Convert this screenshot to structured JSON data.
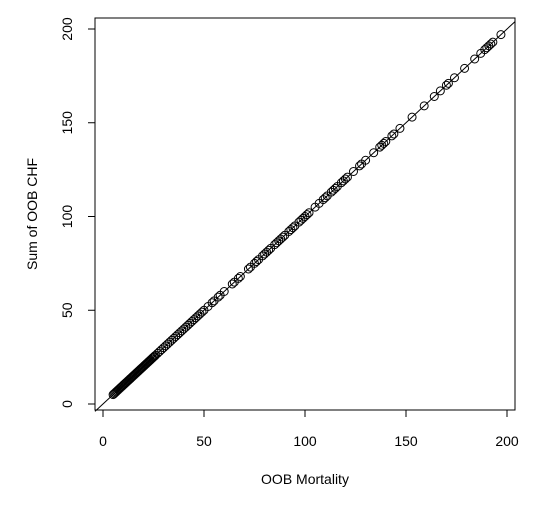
{
  "chart_data": {
    "type": "scatter",
    "title": "",
    "xlabel": "OOB Mortality",
    "ylabel": "Sum of OOB CHF",
    "xlim": [
      0,
      205
    ],
    "ylim": [
      0,
      205
    ],
    "x_ticks": [
      0,
      50,
      100,
      150,
      200
    ],
    "y_ticks": [
      0,
      50,
      100,
      150,
      200
    ],
    "x_tick_labels": [
      "0",
      "50",
      "100",
      "150",
      "200"
    ],
    "y_tick_labels": [
      "0",
      "50",
      "100",
      "150",
      "200"
    ],
    "grid": false,
    "legend": "none",
    "reference_line": {
      "slope": 1,
      "intercept": 0
    },
    "point_style": "open-circle",
    "points": [
      [
        5,
        5
      ],
      [
        5.5,
        5.5
      ],
      [
        6,
        6
      ],
      [
        6.5,
        6.5
      ],
      [
        7,
        7
      ],
      [
        7.5,
        7.5
      ],
      [
        8,
        8
      ],
      [
        8.5,
        8.5
      ],
      [
        9,
        9
      ],
      [
        9.5,
        9.5
      ],
      [
        10,
        10
      ],
      [
        10.5,
        10.5
      ],
      [
        11,
        11
      ],
      [
        11.5,
        11.5
      ],
      [
        12,
        12
      ],
      [
        12.5,
        12.5
      ],
      [
        13,
        13
      ],
      [
        13.5,
        13.5
      ],
      [
        14,
        14
      ],
      [
        14.5,
        14.5
      ],
      [
        15,
        15
      ],
      [
        15.5,
        15.5
      ],
      [
        16,
        16
      ],
      [
        16.5,
        16.5
      ],
      [
        17,
        17
      ],
      [
        17.5,
        17.5
      ],
      [
        18,
        18
      ],
      [
        18.5,
        18.5
      ],
      [
        19,
        19
      ],
      [
        19.5,
        19.5
      ],
      [
        20,
        20
      ],
      [
        20.5,
        20.5
      ],
      [
        21,
        21
      ],
      [
        21.5,
        21.5
      ],
      [
        22,
        22
      ],
      [
        22.5,
        22.5
      ],
      [
        23,
        23
      ],
      [
        23.5,
        23.5
      ],
      [
        24,
        24
      ],
      [
        24.5,
        24.5
      ],
      [
        25,
        25
      ],
      [
        25.5,
        25.5
      ],
      [
        26,
        26
      ],
      [
        27,
        27
      ],
      [
        28,
        28
      ],
      [
        29,
        29
      ],
      [
        30,
        30
      ],
      [
        31,
        31
      ],
      [
        32,
        32
      ],
      [
        33,
        33
      ],
      [
        34,
        34
      ],
      [
        35,
        35
      ],
      [
        36,
        36
      ],
      [
        37,
        37
      ],
      [
        38,
        38
      ],
      [
        39,
        39
      ],
      [
        40,
        40
      ],
      [
        41,
        41
      ],
      [
        42,
        42
      ],
      [
        43,
        43
      ],
      [
        44,
        44
      ],
      [
        45,
        45
      ],
      [
        46,
        46
      ],
      [
        47,
        47
      ],
      [
        48,
        48
      ],
      [
        49,
        49
      ],
      [
        50,
        50
      ],
      [
        52,
        52
      ],
      [
        54,
        54
      ],
      [
        55,
        55
      ],
      [
        57,
        57
      ],
      [
        58,
        58
      ],
      [
        60,
        60
      ],
      [
        64,
        64
      ],
      [
        65,
        65
      ],
      [
        67,
        67
      ],
      [
        68,
        68
      ],
      [
        72,
        72
      ],
      [
        73,
        73
      ],
      [
        75,
        75
      ],
      [
        76,
        76
      ],
      [
        77,
        77
      ],
      [
        79,
        79
      ],
      [
        80,
        80
      ],
      [
        81,
        81
      ],
      [
        82,
        82
      ],
      [
        83,
        83
      ],
      [
        85,
        85
      ],
      [
        86,
        86
      ],
      [
        87,
        87
      ],
      [
        88,
        88
      ],
      [
        89,
        89
      ],
      [
        90,
        90
      ],
      [
        92,
        92
      ],
      [
        93,
        93
      ],
      [
        94,
        94
      ],
      [
        95,
        95
      ],
      [
        97,
        97
      ],
      [
        98,
        98
      ],
      [
        99,
        99
      ],
      [
        100,
        100
      ],
      [
        101,
        101
      ],
      [
        102,
        102
      ],
      [
        105,
        105
      ],
      [
        107,
        107
      ],
      [
        109,
        109
      ],
      [
        110,
        110
      ],
      [
        111,
        111
      ],
      [
        113,
        113
      ],
      [
        114,
        114
      ],
      [
        115,
        115
      ],
      [
        116,
        116
      ],
      [
        118,
        118
      ],
      [
        119,
        119
      ],
      [
        120,
        120
      ],
      [
        121,
        121
      ],
      [
        124,
        124
      ],
      [
        127,
        127
      ],
      [
        128,
        128
      ],
      [
        130,
        130
      ],
      [
        134,
        134
      ],
      [
        137,
        137
      ],
      [
        138,
        138
      ],
      [
        139,
        139
      ],
      [
        140,
        140
      ],
      [
        143,
        143
      ],
      [
        144,
        144
      ],
      [
        147,
        147
      ],
      [
        153,
        153
      ],
      [
        159,
        159
      ],
      [
        164,
        164
      ],
      [
        167,
        167
      ],
      [
        170,
        170
      ],
      [
        171,
        171
      ],
      [
        174,
        174
      ],
      [
        179,
        179
      ],
      [
        184,
        184
      ],
      [
        187,
        187
      ],
      [
        189,
        189
      ],
      [
        190,
        190
      ],
      [
        191,
        191
      ],
      [
        192,
        192
      ],
      [
        193,
        193
      ],
      [
        197,
        197
      ]
    ]
  }
}
